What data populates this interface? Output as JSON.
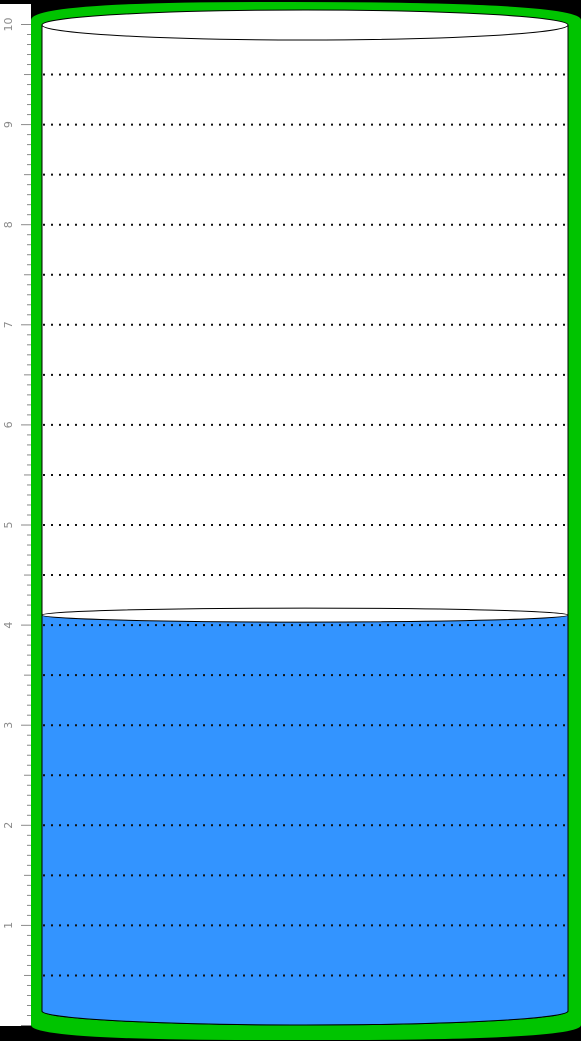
{
  "chart_data": {
    "type": "gauge",
    "value": 4.1,
    "ylim": [
      0,
      10
    ],
    "major_ticks": [
      1,
      2,
      3,
      4,
      5,
      6,
      7,
      8,
      9,
      10
    ],
    "tick_labels": [
      "1",
      "2",
      "3",
      "4",
      "5",
      "6",
      "7",
      "8",
      "9",
      "10"
    ],
    "minor_step": 0.1,
    "gridline_step": 0.5,
    "grid": true,
    "title": "",
    "xlabel": "",
    "ylabel": ""
  },
  "colors": {
    "background": "#000000",
    "scale_strip": "#ffffff",
    "tube_border": "#00c400",
    "tube_empty": "#ffffff",
    "liquid": "#3394ff",
    "gridline": "#111111",
    "tick": "#8a8a8a",
    "outline": "#000000"
  }
}
